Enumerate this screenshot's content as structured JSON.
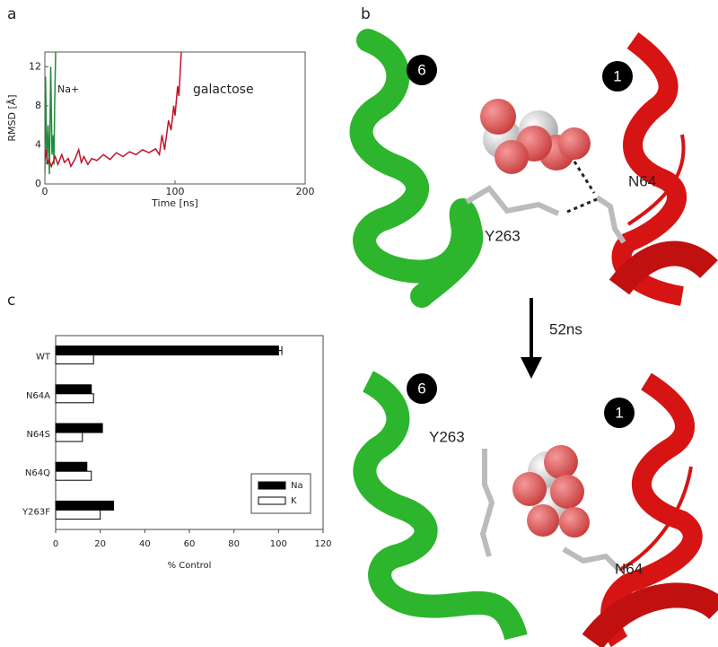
{
  "chart_data": [
    {
      "type": "line",
      "panel": "a",
      "xlabel": "Time [ns]",
      "ylabel": "RMSD [Å]",
      "xlim": [
        0,
        200
      ],
      "ylim": [
        0,
        13.5
      ],
      "xticks": [
        0,
        100,
        200
      ],
      "yticks": [
        0,
        4,
        8,
        12
      ],
      "annotations": [
        "Na+",
        "galactose"
      ],
      "series": [
        {
          "name": "Na+",
          "color": "#1e8c3a",
          "x": [
            0,
            0.5,
            1.5,
            2.5,
            3.5,
            4.5,
            5.5,
            6.5,
            7,
            7.5,
            8.5
          ],
          "values": [
            1,
            11,
            2,
            6,
            1,
            12,
            3,
            5,
            2,
            8,
            15
          ]
        },
        {
          "name": "galactose",
          "color": "#c0142a",
          "x": [
            0,
            1,
            2,
            3,
            5,
            8,
            10,
            13,
            15,
            18,
            20,
            23,
            26,
            28,
            30,
            33,
            36,
            40,
            45,
            50,
            55,
            60,
            65,
            70,
            75,
            80,
            85,
            88,
            90,
            92,
            95,
            97,
            99,
            100,
            102,
            103,
            105
          ],
          "values": [
            2.5,
            3.5,
            2,
            2.5,
            1.8,
            2.8,
            2,
            3,
            2.2,
            2.6,
            1.8,
            2.5,
            3.5,
            2.2,
            2.8,
            2,
            2.6,
            2.4,
            3,
            2.5,
            3.2,
            2.8,
            3.3,
            3,
            3.5,
            3.2,
            3.6,
            3,
            5,
            3.5,
            6.5,
            5.5,
            8,
            7,
            10,
            9,
            14
          ]
        }
      ]
    },
    {
      "type": "bar",
      "panel": "c",
      "orientation": "horizontal",
      "xlabel": "% Control",
      "categories": [
        "WT",
        "N64A",
        "N64S",
        "N64Q",
        "Y263F"
      ],
      "xlim": [
        0,
        120
      ],
      "xticks": [
        0,
        20,
        40,
        60,
        80,
        100,
        120
      ],
      "legend": "lower right",
      "series": [
        {
          "name": "Na",
          "color": "#000000",
          "values": [
            100,
            16,
            21,
            14,
            26
          ],
          "errors": [
            1.5,
            null,
            null,
            null,
            null
          ]
        },
        {
          "name": "K",
          "color": "#ffffff",
          "values": [
            17,
            17,
            12,
            16,
            20
          ]
        }
      ]
    }
  ],
  "structure_panel": {
    "panel": "b",
    "arrow_label": "52ns",
    "top": {
      "helix_left": "6",
      "helix_right": "1",
      "residue_1": "N64",
      "residue_2": "Y263"
    },
    "bottom": {
      "helix_left": "6",
      "helix_right": "1",
      "residue_1": "N64",
      "residue_2": "Y263"
    }
  }
}
